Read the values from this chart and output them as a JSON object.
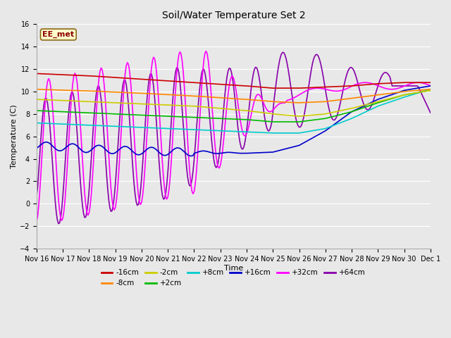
{
  "title": "Soil/Water Temperature Set 2",
  "xlabel": "Time",
  "ylabel": "Temperature (C)",
  "ylim": [
    -4,
    16
  ],
  "background_color": "#e8e8e8",
  "fig_facecolor": "#e8e8e8",
  "grid_color": "#ffffff",
  "annotation_text": "EE_met",
  "annotation_bg": "#ffffcc",
  "annotation_border": "#8b6914",
  "series": {
    "-16cm": {
      "color": "#cc0000",
      "linewidth": 1.2
    },
    "-8cm": {
      "color": "#ff8800",
      "linewidth": 1.2
    },
    "-2cm": {
      "color": "#cccc00",
      "linewidth": 1.2
    },
    "+2cm": {
      "color": "#00bb00",
      "linewidth": 1.2
    },
    "+8cm": {
      "color": "#00cccc",
      "linewidth": 1.2
    },
    "+16cm": {
      "color": "#0000cc",
      "linewidth": 1.2
    },
    "+32cm": {
      "color": "#ff00ff",
      "linewidth": 1.2
    },
    "+64cm": {
      "color": "#8800aa",
      "linewidth": 1.2
    }
  },
  "xtick_labels": [
    "Nov 16",
    "Nov 17",
    "Nov 18",
    "Nov 19",
    "Nov 20",
    "Nov 21",
    "Nov 22",
    "Nov 23",
    "Nov 24",
    "Nov 25",
    "Nov 26",
    "Nov 27",
    "Nov 28",
    "Nov 29",
    "Nov 30",
    "Dec 1"
  ],
  "legend_order": [
    "-16cm",
    "-8cm",
    "-2cm",
    "+2cm",
    "+8cm",
    "+16cm",
    "+32cm",
    "+64cm"
  ]
}
